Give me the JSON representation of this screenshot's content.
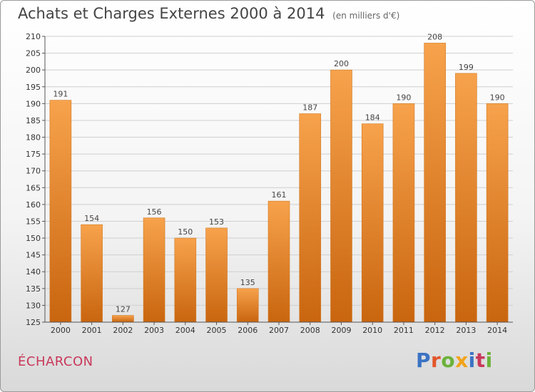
{
  "header": {
    "title": "Achats et Charges Externes 2000 à 2014",
    "unit": "(en milliers d'€)"
  },
  "footer": {
    "commune": "ÉCHARCON",
    "logo_text": "Proxiti",
    "logo_colors": [
      "#3b73c4",
      "#e2562b",
      "#6bb23a",
      "#f2a31b",
      "#3b73c4",
      "#c8385a",
      "#6bb23a"
    ]
  },
  "colors": {
    "bar_light": "#f7a24c",
    "bar_dark": "#c9650f",
    "bar_edge": "#d17a24",
    "grid": "#cfcfcf"
  },
  "chart_data": {
    "type": "bar",
    "title": "Achats et Charges Externes 2000 à 2014",
    "subtitle": "(en milliers d'€)",
    "categories": [
      "2000",
      "2001",
      "2002",
      "2003",
      "2004",
      "2005",
      "2006",
      "2007",
      "2008",
      "2009",
      "2010",
      "2011",
      "2012",
      "2013",
      "2014"
    ],
    "values": [
      191,
      154,
      127,
      156,
      150,
      153,
      135,
      161,
      187,
      200,
      184,
      190,
      208,
      199,
      190
    ],
    "ylim": [
      125,
      210
    ],
    "yticks": [
      125,
      130,
      135,
      140,
      145,
      150,
      155,
      160,
      165,
      170,
      175,
      180,
      185,
      190,
      195,
      200,
      205,
      210
    ],
    "grid": true,
    "legend": "none"
  }
}
